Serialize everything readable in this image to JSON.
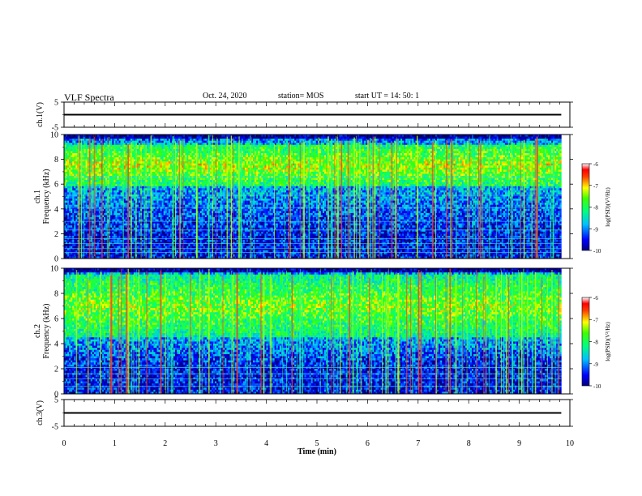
{
  "header": {
    "title": "VLF Spectra",
    "date": "Oct. 24, 2020",
    "station": "station= MOS",
    "start_time": "start  UT  =   14: 50: 1"
  },
  "chart_data": [
    {
      "type": "line",
      "name": "ch1-voltage",
      "ylabel": "ch.1(V)",
      "ylim": [
        -5,
        5
      ],
      "yticks": [
        "5",
        "-5"
      ],
      "series": [
        {
          "x": [
            0,
            9.83
          ],
          "y": [
            0,
            0
          ]
        }
      ]
    },
    {
      "type": "heatmap",
      "name": "ch1-spectrogram",
      "ylabel": "ch.1\nFrequency (kHz)",
      "ylim": [
        0,
        10
      ],
      "yticks": [
        "0",
        "2",
        "4",
        "6",
        "8",
        "10"
      ],
      "xlim": [
        0,
        9.83
      ],
      "spectral_band_khz": [
        5.8,
        9.2
      ],
      "persistent_lines_khz": [
        0.5,
        0.8,
        1.2,
        1.6,
        2.3,
        3.0,
        4.1,
        5.1,
        6.6
      ],
      "colorbar": {
        "label": "log(PSD)(V²/Hz)",
        "range": [
          -10,
          -6
        ],
        "ticks": [
          "-6",
          "-7",
          "-8",
          "-9",
          "-10"
        ]
      }
    },
    {
      "type": "heatmap",
      "name": "ch2-spectrogram",
      "ylabel": "ch.2\nFrequency (kHz)",
      "ylim": [
        0,
        10
      ],
      "yticks": [
        "0",
        "2",
        "4",
        "6",
        "8",
        "10"
      ],
      "xlim": [
        0,
        9.83
      ],
      "spectral_band_khz": [
        4.5,
        9.5
      ],
      "persistent_lines_khz": [
        0.6,
        1.2,
        1.6,
        2.1
      ],
      "colorbar": {
        "label": "log(PSD)(V²/Hz)",
        "range": [
          -10,
          -6
        ],
        "ticks": [
          "-6",
          "-7",
          "-8",
          "-9",
          "-10"
        ]
      }
    },
    {
      "type": "line",
      "name": "ch3-voltage",
      "ylabel": "ch.3(V)",
      "ylim": [
        -5,
        5
      ],
      "yticks": [
        "5",
        "-5"
      ],
      "series": [
        {
          "x": [
            0,
            9.83
          ],
          "y": [
            0,
            0
          ]
        }
      ]
    }
  ],
  "x_axis": {
    "label": "Time  (min)",
    "xlim": [
      0,
      10
    ],
    "ticks": [
      "0",
      "1",
      "2",
      "3",
      "4",
      "5",
      "6",
      "7",
      "8",
      "9",
      "10"
    ]
  }
}
